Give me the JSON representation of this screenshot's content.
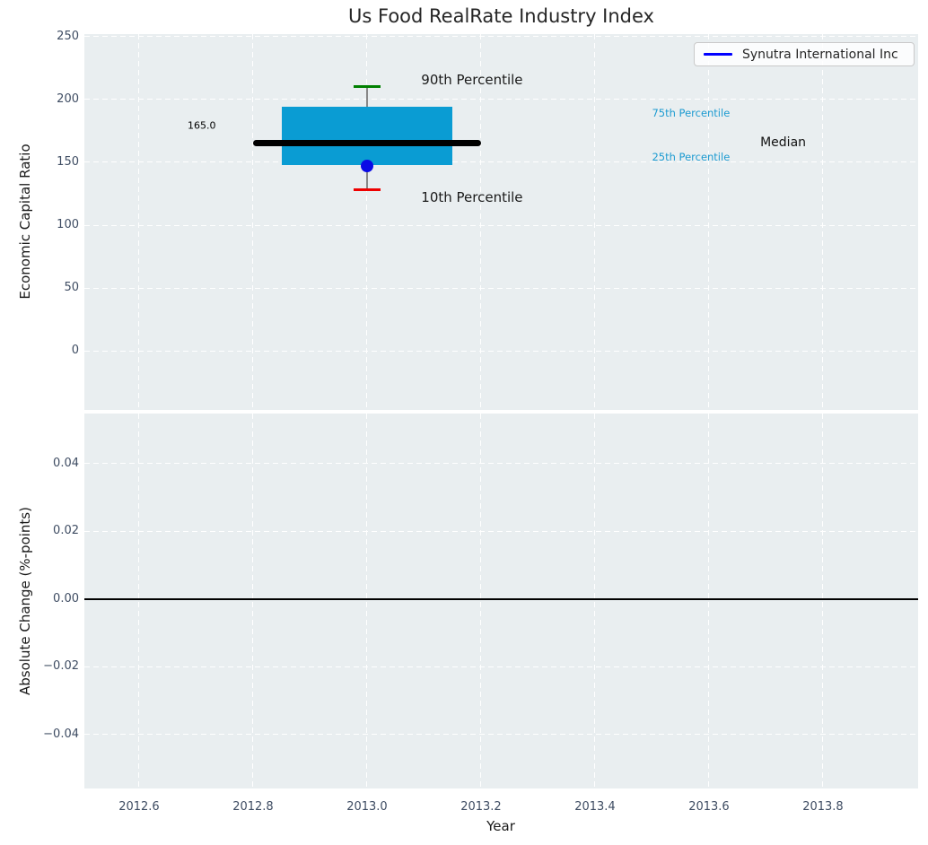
{
  "legend": {
    "label": "Synutra International Inc",
    "line_color": "#0000ff"
  },
  "chart_data": [
    {
      "type": "boxplot",
      "title": "Us Food RealRate Industry Index",
      "ylabel": "Economic Capital Ratio",
      "xlim": [
        2012.504,
        2013.967
      ],
      "ylim": [
        -47.1,
        252.1
      ],
      "grid": true,
      "legend_position": "upper-right",
      "xtick_values": [
        2012.6,
        2012.8,
        2013.0,
        2013.2,
        2013.4,
        2013.6,
        2013.8
      ],
      "yticks": [
        {
          "value": 250,
          "label": "250"
        },
        {
          "value": 200,
          "label": "200"
        },
        {
          "value": 150,
          "label": "150"
        },
        {
          "value": 100,
          "label": "100"
        },
        {
          "value": 50,
          "label": "50"
        },
        {
          "value": 0,
          "label": "0"
        }
      ],
      "box": {
        "x": 2013.0,
        "p90": 210,
        "p75": 194,
        "median": 165.0,
        "p25": 148,
        "p10": 128,
        "median_label": "165.0",
        "box_x_span": [
          2012.85,
          2013.15
        ],
        "median_x_span": [
          2012.8,
          2013.2
        ],
        "colors": {
          "box": "#0a9cd3",
          "median": "#000000",
          "whisker": "#888888",
          "p90_cap": "#008000",
          "p10_cap": "#ee0000"
        }
      },
      "series": [
        {
          "name": "Synutra International Inc",
          "x": 2013.0,
          "value": 147,
          "marker": "circle",
          "color": "#0a0ae6"
        }
      ],
      "annotations": [
        {
          "name": "annotation-90th-percentile",
          "text": "90th Percentile",
          "x": 2013.095,
          "y": 216,
          "color": "#1a1a1a",
          "size": 15,
          "align": "left"
        },
        {
          "name": "annotation-10th-percentile",
          "text": "10th Percentile",
          "x": 2013.095,
          "y": 122,
          "color": "#1a1a1a",
          "size": 15,
          "align": "left"
        },
        {
          "name": "annotation-median-value",
          "text": "165.0",
          "x": 2012.71,
          "y": 179,
          "color": "#000000",
          "size": 11,
          "align": "center"
        },
        {
          "name": "annotation-75th-percentile",
          "text": "75th Percentile",
          "x": 2013.5,
          "y": 189,
          "color": "#1d9bd1",
          "size": 11.5,
          "align": "left"
        },
        {
          "name": "annotation-25th-percentile",
          "text": "25th Percentile",
          "x": 2013.5,
          "y": 154,
          "color": "#1d9bd1",
          "size": 11.5,
          "align": "left"
        },
        {
          "name": "annotation-median",
          "text": "Median",
          "x": 2013.69,
          "y": 166,
          "color": "#111111",
          "size": 14,
          "align": "left"
        }
      ]
    },
    {
      "type": "line",
      "ylabel": "Absolute Change (%-points)",
      "xlabel": "Year",
      "xlim": [
        2012.504,
        2013.967
      ],
      "ylim": [
        -0.0559,
        0.0548
      ],
      "grid": true,
      "xticks": [
        {
          "value": 2012.6,
          "label": "2012.6"
        },
        {
          "value": 2012.8,
          "label": "2012.8"
        },
        {
          "value": 2013.0,
          "label": "2013.0"
        },
        {
          "value": 2013.2,
          "label": "2013.2"
        },
        {
          "value": 2013.4,
          "label": "2013.4"
        },
        {
          "value": 2013.6,
          "label": "2013.6"
        },
        {
          "value": 2013.8,
          "label": "2013.8"
        }
      ],
      "yticks": [
        {
          "value": 0.04,
          "label": "0.04"
        },
        {
          "value": 0.02,
          "label": "0.02"
        },
        {
          "value": 0.0,
          "label": "0.00"
        },
        {
          "value": -0.02,
          "label": "−0.02"
        },
        {
          "value": -0.04,
          "label": "−0.04"
        }
      ],
      "zero_line": {
        "y": 0.0,
        "color": "#000000"
      },
      "series": []
    }
  ]
}
